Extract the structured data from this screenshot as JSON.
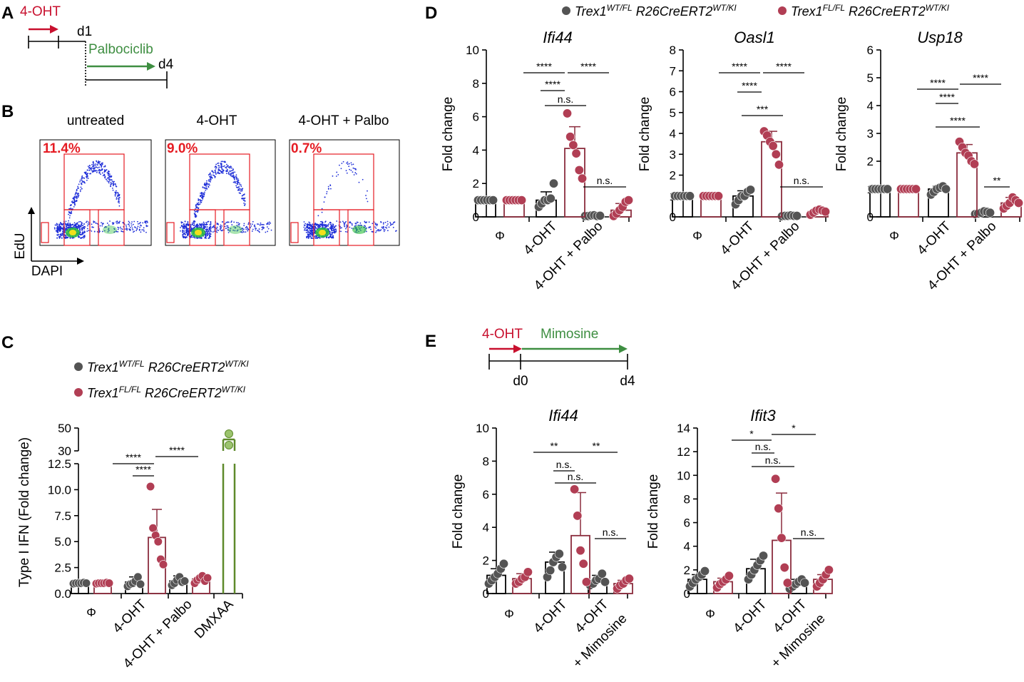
{
  "colors": {
    "wt": "#545454",
    "wt_bar": "#000000",
    "fl": "#b13e54",
    "fl_bar": "#8b2c3d",
    "dmxaa": "#5e8a2b",
    "dmxaa_point": "#9cc46e",
    "timeline_red": "#c8102e",
    "timeline_green": "#3e8e41",
    "gate_red": "#e51c23",
    "flow_blue": "#1f2fd8"
  },
  "panel_A": {
    "letter": "A",
    "treatment_1": "4-OHT",
    "day_1": "d1",
    "treatment_2": "Palbociclib",
    "day_4": "d4"
  },
  "panel_B": {
    "letter": "B",
    "plots": [
      {
        "title": "untreated",
        "pct": "11.4%"
      },
      {
        "title": "4-OHT",
        "pct": "9.0%"
      },
      {
        "title": "4-OHT + Palbo",
        "pct": "0.7%"
      }
    ],
    "y_axis": "EdU",
    "x_axis": "DAPI"
  },
  "legend": {
    "wt": {
      "gene": "Trex1",
      "gene_sup": "WT/FL",
      "cre": " R26CreERT2",
      "cre_sup": "WT/KI"
    },
    "fl": {
      "gene": "Trex1",
      "gene_sup": "FL/FL",
      "cre": " R26CreERT2",
      "cre_sup": "WT/KI"
    }
  },
  "panel_C": {
    "letter": "C",
    "ylabel": "Type I IFN (Fold change)",
    "categories": [
      "Φ",
      "4-OHT",
      "4-OHT + Palbo",
      "DMXAA"
    ]
  },
  "panel_D": {
    "letter": "D",
    "ylabel": "Fold change",
    "categories": [
      "Φ",
      "4-OHT",
      "4-OHT + Palbo"
    ]
  },
  "panel_E": {
    "letter": "E",
    "treatment_1": "4-OHT",
    "treatment_2": "Mimosine",
    "day_0": "d0",
    "day_4": "d4",
    "ylabel": "Fold change",
    "categories": [
      "Φ",
      "4-OHT",
      "4-OHT",
      "+ Mimosine"
    ]
  },
  "chart_data": [
    {
      "id": "C",
      "type": "bar",
      "title": "",
      "ylabel": "Type I IFN (Fold change)",
      "categories": [
        "Φ",
        "4-OHT",
        "4-OHT + Palbo",
        "DMXAA"
      ],
      "broken_axis": {
        "lower": [
          0,
          12.5
        ],
        "upper": [
          30,
          50
        ]
      },
      "yticks_lower": [
        "0.0",
        "2.5",
        "5.0",
        "7.5",
        "10.0",
        "12.5"
      ],
      "yticks_upper": [
        "30",
        "50"
      ],
      "series": [
        {
          "name": "Trex1 WT/FL R26CreERT2 WT/KI",
          "means": [
            1.0,
            1.1,
            1.2
          ],
          "sd": [
            0.05,
            0.5,
            0.5
          ],
          "points": [
            [
              0.95,
              1.0,
              1.0,
              1.0,
              1.05,
              1.0
            ],
            [
              0.7,
              0.9,
              1.0,
              1.2,
              1.6,
              0.9
            ],
            [
              0.8,
              1.0,
              1.3,
              1.6,
              1.1,
              1.2
            ]
          ]
        },
        {
          "name": "Trex1 FL/FL R26CreERT2 WT/KI",
          "means": [
            1.0,
            5.4,
            1.4
          ],
          "sd": [
            0.05,
            2.7,
            0.3
          ],
          "points": [
            [
              0.95,
              1.0,
              1.0,
              1.0,
              1.05,
              1.0
            ],
            [
              10.3,
              6.3,
              5.6,
              5.0,
              3.3,
              2.8
            ],
            [
              1.0,
              1.3,
              1.5,
              1.7,
              1.2,
              1.5
            ]
          ]
        },
        {
          "name": "DMXAA",
          "means": [
            40
          ],
          "sd": [
            4
          ],
          "points": [
            [
              45,
              35
            ]
          ]
        }
      ],
      "significance": [
        {
          "label": "****",
          "from": "4-OHT WT",
          "to": "4-OHT FL"
        },
        {
          "label": "****",
          "from": "Φ WT",
          "to": "4-OHT FL"
        },
        {
          "label": "****",
          "from": "4-OHT FL",
          "to": "4-OHT + Palbo FL"
        }
      ]
    },
    {
      "id": "D1",
      "type": "bar",
      "title": "Ifi44",
      "ylabel": "Fold change",
      "ylim": [
        0,
        10
      ],
      "yticks": [
        "0",
        "2",
        "4",
        "6",
        "8",
        "10"
      ],
      "categories": [
        "Φ",
        "4-OHT",
        "4-OHT + Palbo"
      ],
      "series": [
        {
          "name": "Trex1 WT/FL",
          "means": [
            1.0,
            1.0,
            0.07
          ],
          "sd": [
            0.05,
            0.5,
            0.05
          ],
          "points": [
            [
              1,
              1,
              1,
              1,
              1,
              1
            ],
            [
              0.6,
              0.8,
              1.0,
              1.0,
              1.1,
              2.0
            ],
            [
              0.05,
              0.05,
              0.08,
              0.1,
              0.05,
              0.07
            ]
          ]
        },
        {
          "name": "Trex1 FL/FL",
          "means": [
            1.0,
            4.1,
            0.4
          ],
          "sd": [
            0.05,
            1.3,
            0.4
          ],
          "points": [
            [
              1,
              1,
              1,
              1,
              1,
              1
            ],
            [
              6.2,
              4.8,
              4.3,
              3.8,
              2.8,
              2.3
            ],
            [
              0.05,
              0.2,
              0.4,
              0.6,
              0.9,
              1.0
            ]
          ]
        }
      ],
      "significance": [
        {
          "label": "****",
          "from": "Φ",
          "to": "4-OHT FL"
        },
        {
          "label": "****",
          "from": "4-OHT FL",
          "to": "4-OHT + Palbo FL"
        },
        {
          "label": "****",
          "from": "4-OHT WT",
          "to": "4-OHT FL"
        },
        {
          "label": "n.s.",
          "from": "4-OHT WT",
          "to": "4-OHT + Palbo WT"
        },
        {
          "label": "n.s.",
          "from": "4-OHT + Palbo WT",
          "to": "4-OHT + Palbo FL"
        }
      ]
    },
    {
      "id": "D2",
      "type": "bar",
      "title": "Oasl1",
      "ylabel": "Fold change",
      "ylim": [
        0,
        8
      ],
      "yticks": [
        "0",
        "1",
        "2",
        "3",
        "4",
        "5",
        "6",
        "7",
        "8"
      ],
      "categories": [
        "Φ",
        "4-OHT",
        "4-OHT + Palbo"
      ],
      "series": [
        {
          "name": "Trex1 WT/FL",
          "means": [
            1.0,
            1.0,
            0.05
          ],
          "sd": [
            0.05,
            0.25,
            0.03
          ],
          "points": [
            [
              1,
              1,
              1,
              1,
              1,
              1
            ],
            [
              0.6,
              0.8,
              1.0,
              1.0,
              1.2,
              1.3
            ],
            [
              0.03,
              0.05,
              0.05,
              0.07,
              0.05,
              0.05
            ]
          ]
        },
        {
          "name": "Trex1 FL/FL",
          "means": [
            1.0,
            3.6,
            0.25
          ],
          "sd": [
            0.05,
            0.5,
            0.1
          ],
          "points": [
            [
              1,
              1,
              1,
              1,
              1,
              1
            ],
            [
              4.1,
              3.9,
              3.6,
              3.4,
              3.0,
              2.5
            ],
            [
              0.1,
              0.2,
              0.3,
              0.35,
              0.3,
              0.25
            ]
          ]
        }
      ],
      "significance": [
        {
          "label": "****",
          "from": "Φ",
          "to": "4-OHT FL"
        },
        {
          "label": "****",
          "from": "4-OHT FL",
          "to": "4-OHT + Palbo FL"
        },
        {
          "label": "****",
          "from": "4-OHT WT",
          "to": "4-OHT FL"
        },
        {
          "label": "***",
          "from": "4-OHT WT",
          "to": "4-OHT + Palbo WT"
        },
        {
          "label": "n.s.",
          "from": "4-OHT + Palbo WT",
          "to": "4-OHT + Palbo FL"
        }
      ]
    },
    {
      "id": "D3",
      "type": "bar",
      "title": "Usp18",
      "ylabel": "Fold change",
      "ylim": [
        0,
        6
      ],
      "yticks": [
        "0",
        "1",
        "2",
        "3",
        "4",
        "5",
        "6"
      ],
      "categories": [
        "Φ",
        "4-OHT",
        "4-OHT + Palbo"
      ],
      "series": [
        {
          "name": "Trex1 WT/FL",
          "means": [
            1.0,
            1.0,
            0.15
          ],
          "sd": [
            0.03,
            0.1,
            0.05
          ],
          "points": [
            [
              1,
              1,
              1,
              1,
              1,
              1
            ],
            [
              0.8,
              0.9,
              1.0,
              1.05,
              1.1,
              1.0
            ],
            [
              0.1,
              0.12,
              0.15,
              0.2,
              0.18,
              0.15
            ]
          ]
        },
        {
          "name": "Trex1 FL/FL",
          "means": [
            1.0,
            2.3,
            0.5
          ],
          "sd": [
            0.03,
            0.3,
            0.2
          ],
          "points": [
            [
              1,
              1,
              1,
              1,
              1,
              1
            ],
            [
              2.7,
              2.5,
              2.3,
              2.2,
              2.0,
              1.9
            ],
            [
              0.3,
              0.4,
              0.5,
              0.7,
              0.6,
              0.5
            ]
          ]
        }
      ],
      "significance": [
        {
          "label": "****",
          "from": "Φ",
          "to": "4-OHT FL"
        },
        {
          "label": "****",
          "from": "4-OHT FL",
          "to": "4-OHT + Palbo FL"
        },
        {
          "label": "****",
          "from": "4-OHT WT",
          "to": "4-OHT FL"
        },
        {
          "label": "****",
          "from": "4-OHT WT",
          "to": "4-OHT + Palbo WT"
        },
        {
          "label": "**",
          "from": "4-OHT + Palbo WT",
          "to": "4-OHT + Palbo FL"
        }
      ]
    },
    {
      "id": "E1",
      "type": "bar",
      "title": "Ifi44",
      "ylabel": "Fold change",
      "ylim": [
        0,
        10
      ],
      "yticks": [
        "0",
        "2",
        "4",
        "6",
        "8",
        "10"
      ],
      "categories": [
        "Φ",
        "4-OHT",
        "4-OHT + Mimosine"
      ],
      "series": [
        {
          "name": "Trex1 WT/FL",
          "means": [
            1.1,
            1.9,
            0.8
          ],
          "sd": [
            0.4,
            0.6,
            0.3
          ],
          "points": [
            [
              0.6,
              0.8,
              1.0,
              1.2,
              1.5,
              1.8
            ],
            [
              1.0,
              1.4,
              1.9,
              2.2,
              2.4,
              1.6
            ],
            [
              0.5,
              0.6,
              0.8,
              0.9,
              1.2,
              0.7
            ]
          ]
        },
        {
          "name": "Trex1 FL/FL",
          "means": [
            0.9,
            3.5,
            0.6
          ],
          "sd": [
            0.3,
            2.6,
            0.2
          ],
          "points": [
            [
              0.6,
              0.7,
              0.9,
              1.0,
              1.3
            ],
            [
              6.3,
              4.7,
              2.6,
              1.8,
              0.7
            ],
            [
              0.3,
              0.5,
              0.6,
              0.8,
              0.9
            ]
          ]
        }
      ],
      "significance": [
        {
          "label": "**",
          "from": "Φ",
          "to": "4-OHT FL"
        },
        {
          "label": "**",
          "from": "4-OHT FL",
          "to": "4-OHT + Mimosine FL"
        },
        {
          "label": "n.s.",
          "from": "4-OHT WT",
          "to": "4-OHT FL"
        },
        {
          "label": "n.s.",
          "from": "4-OHT WT",
          "to": "4-OHT + Mimosine WT"
        },
        {
          "label": "n.s.",
          "from": "4-OHT + Mimosine WT",
          "to": "4-OHT + Mimosine FL"
        }
      ]
    },
    {
      "id": "E2",
      "type": "bar",
      "title": "Ifit3",
      "ylabel": "Fold change",
      "ylim": [
        0,
        14
      ],
      "yticks": [
        "0",
        "2",
        "4",
        "6",
        "8",
        "10",
        "12",
        "14"
      ],
      "categories": [
        "Φ",
        "4-OHT",
        "4-OHT + Mimosine"
      ],
      "series": [
        {
          "name": "Trex1 WT/FL",
          "means": [
            1.2,
            2.1,
            0.9
          ],
          "sd": [
            0.4,
            0.8,
            0.3
          ],
          "points": [
            [
              0.6,
              0.9,
              1.2,
              1.4,
              1.6,
              1.9
            ],
            [
              1.2,
              1.6,
              2.0,
              2.4,
              2.8,
              3.2
            ],
            [
              0.4,
              0.6,
              0.8,
              1.0,
              1.2,
              0.9
            ]
          ]
        },
        {
          "name": "Trex1 FL/FL",
          "means": [
            1.0,
            4.5,
            1.2
          ],
          "sd": [
            0.3,
            4.0,
            0.4
          ],
          "points": [
            [
              0.5,
              0.8,
              1.0,
              1.2,
              1.5
            ],
            [
              9.7,
              7.2,
              4.7,
              2.2,
              0.9
            ],
            [
              0.6,
              0.9,
              1.2,
              1.6,
              2.0
            ]
          ]
        }
      ],
      "significance": [
        {
          "label": "*",
          "from": "Φ",
          "to": "4-OHT FL"
        },
        {
          "label": "*",
          "from": "4-OHT FL",
          "to": "4-OHT + Mimosine FL"
        },
        {
          "label": "n.s.",
          "from": "4-OHT WT",
          "to": "4-OHT FL"
        },
        {
          "label": "n.s.",
          "from": "4-OHT WT",
          "to": "4-OHT + Mimosine WT"
        },
        {
          "label": "n.s.",
          "from": "4-OHT + Mimosine WT",
          "to": "4-OHT + Mimosine FL"
        }
      ]
    }
  ]
}
